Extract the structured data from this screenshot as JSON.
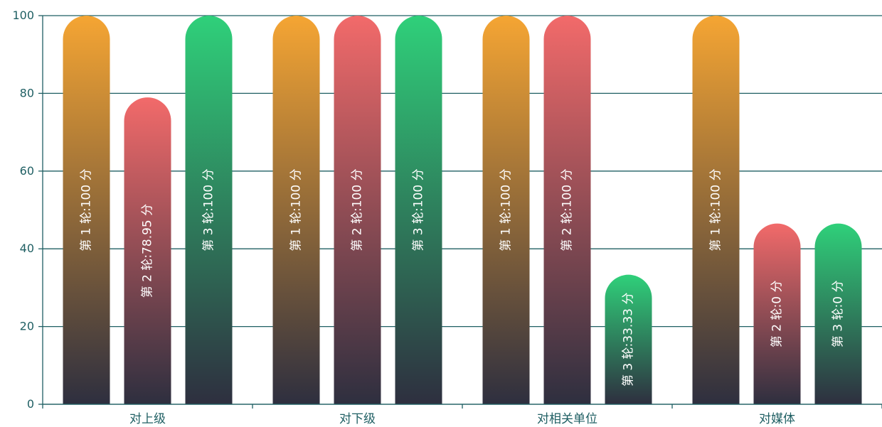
{
  "chart_data": {
    "type": "bar",
    "categories": [
      "对上级",
      "对下级",
      "对相关单位",
      "对媒体"
    ],
    "ylim": [
      0,
      100
    ],
    "yticks": [
      0,
      20,
      40,
      60,
      80,
      100
    ],
    "grid": true,
    "series": [
      {
        "values": [
          100,
          100,
          100,
          100
        ],
        "labels": [
          "第 1 轮:100 分",
          "第 1 轮:100 分",
          "第 1 轮:100 分",
          "第 1 轮:100 分"
        ],
        "gradient_top": "#f5a533",
        "gradient_bottom": "#2e2f3f"
      },
      {
        "values": [
          78.95,
          100,
          100,
          0
        ],
        "labels": [
          "第 2 轮:78.95 分",
          "第 2 轮:100 分",
          "第 2 轮:100 分",
          "第 2 轮:0 分"
        ],
        "gradient_top": "#f26a6a",
        "gradient_bottom": "#2e2f3f"
      },
      {
        "values": [
          100,
          100,
          33.33,
          0
        ],
        "labels": [
          "第 3 轮:100 分",
          "第 3 轮:100 分",
          "第 3 轮:33.33 分",
          "第 3 轮:0 分"
        ],
        "gradient_top": "#2fd07a",
        "gradient_bottom": "#2e2f3f"
      }
    ],
    "axis_color": "#1f5f63"
  }
}
